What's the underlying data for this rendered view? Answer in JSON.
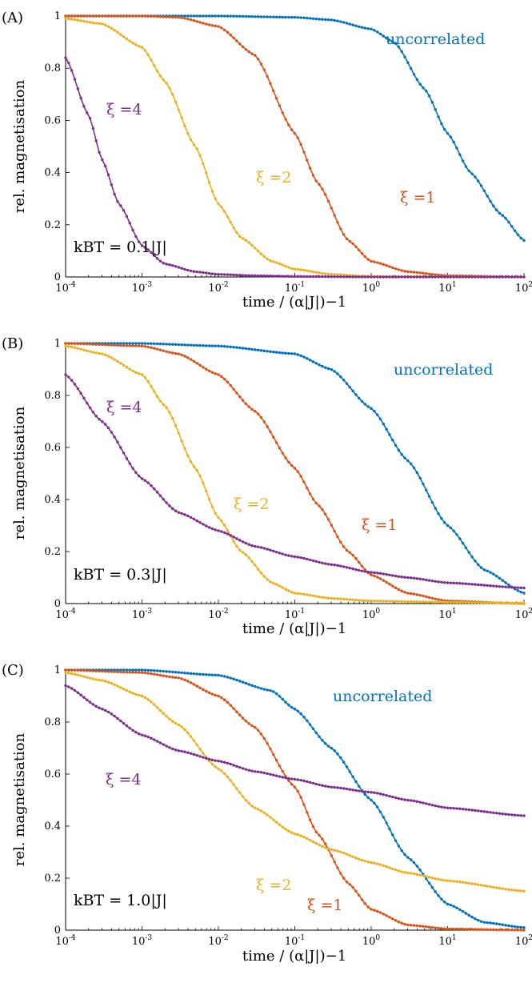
{
  "chart_data": [
    {
      "type": "line",
      "panel": "(A)",
      "xscale": "log",
      "xlim": [
        0.0001,
        100
      ],
      "ylim": [
        0,
        1
      ],
      "xticks": [
        "10-4",
        "10-3",
        "10-2",
        "10-1",
        "100",
        "101",
        "102"
      ],
      "yticks": [
        "0",
        "0.2",
        "0.4",
        "0.6",
        "0.8",
        "1"
      ],
      "xlabel": "time / (α|J|)−1",
      "ylabel": "rel. magnetisation",
      "temperature_label": "kBT = 0.1|J|",
      "series": [
        {
          "name": "uncorrelated",
          "color": "#0072BD",
          "x": [
            0.0001,
            0.001,
            0.01,
            0.1,
            0.3,
            1,
            2,
            5,
            10,
            20,
            50,
            100
          ],
          "y": [
            1,
            1,
            1,
            0.995,
            0.985,
            0.95,
            0.9,
            0.72,
            0.55,
            0.4,
            0.24,
            0.14
          ]
        },
        {
          "name": "ξ =1",
          "color": "#D95319",
          "x": [
            0.0001,
            0.001,
            0.003,
            0.01,
            0.03,
            0.1,
            0.2,
            0.5,
            1,
            3,
            10,
            100
          ],
          "y": [
            1,
            1,
            0.995,
            0.96,
            0.85,
            0.55,
            0.36,
            0.14,
            0.06,
            0.02,
            0.005,
            0
          ]
        },
        {
          "name": "ξ =2",
          "color": "#EDB120",
          "x": [
            0.0001,
            0.0003,
            0.001,
            0.002,
            0.005,
            0.01,
            0.02,
            0.05,
            0.1,
            0.3,
            1,
            100
          ],
          "y": [
            0.99,
            0.97,
            0.88,
            0.75,
            0.5,
            0.28,
            0.15,
            0.06,
            0.03,
            0.01,
            0.002,
            0
          ]
        },
        {
          "name": "ξ =4",
          "color": "#7E2F8E",
          "x": [
            0.0001,
            0.0002,
            0.0003,
            0.0005,
            0.001,
            0.002,
            0.005,
            0.01,
            0.03,
            0.1,
            1,
            100
          ],
          "y": [
            0.84,
            0.62,
            0.45,
            0.28,
            0.12,
            0.05,
            0.02,
            0.01,
            0.005,
            0.002,
            0,
            0
          ]
        }
      ]
    },
    {
      "type": "line",
      "panel": "(B)",
      "xscale": "log",
      "xlim": [
        0.0001,
        100
      ],
      "ylim": [
        0,
        1
      ],
      "xticks": [
        "10-4",
        "10-3",
        "10-2",
        "10-1",
        "100",
        "101",
        "102"
      ],
      "yticks": [
        "0",
        "0.2",
        "0.4",
        "0.6",
        "0.8",
        "1"
      ],
      "xlabel": "time / (α|J|)−1",
      "ylabel": "rel. magnetisation",
      "temperature_label": "kBT = 0.3|J|",
      "series": [
        {
          "name": "uncorrelated",
          "color": "#0072BD",
          "x": [
            0.0001,
            0.001,
            0.01,
            0.1,
            0.3,
            1,
            3,
            10,
            30,
            100
          ],
          "y": [
            1,
            1,
            0.99,
            0.96,
            0.9,
            0.75,
            0.55,
            0.3,
            0.13,
            0.04
          ]
        },
        {
          "name": "ξ =1",
          "color": "#D95319",
          "x": [
            0.0001,
            0.001,
            0.003,
            0.01,
            0.03,
            0.1,
            0.2,
            0.5,
            1,
            3,
            10,
            100
          ],
          "y": [
            1,
            0.99,
            0.96,
            0.88,
            0.74,
            0.52,
            0.38,
            0.2,
            0.11,
            0.04,
            0.01,
            0
          ]
        },
        {
          "name": "ξ =2",
          "color": "#EDB120",
          "x": [
            0.0001,
            0.0003,
            0.001,
            0.002,
            0.005,
            0.01,
            0.02,
            0.05,
            0.1,
            0.3,
            1,
            10,
            100
          ],
          "y": [
            0.99,
            0.96,
            0.88,
            0.76,
            0.52,
            0.33,
            0.2,
            0.08,
            0.04,
            0.02,
            0.01,
            0.005,
            0.002
          ]
        },
        {
          "name": "ξ =4",
          "color": "#7E2F8E",
          "x": [
            0.0001,
            0.0003,
            0.001,
            0.003,
            0.01,
            0.03,
            0.1,
            0.3,
            1,
            3,
            10,
            100
          ],
          "y": [
            0.88,
            0.7,
            0.48,
            0.35,
            0.28,
            0.22,
            0.18,
            0.15,
            0.12,
            0.1,
            0.08,
            0.06
          ]
        }
      ]
    },
    {
      "type": "line",
      "panel": "(C)",
      "xscale": "log",
      "xlim": [
        0.0001,
        100
      ],
      "ylim": [
        0,
        1
      ],
      "xticks": [
        "10-4",
        "10-3",
        "10-2",
        "10-1",
        "100",
        "101",
        "102"
      ],
      "yticks": [
        "0",
        "0.2",
        "0.4",
        "0.6",
        "0.8",
        "1"
      ],
      "xlabel": "time / (α|J|)−1",
      "ylabel": "rel. magnetisation",
      "temperature_label": "kBT = 1.0|J|",
      "series": [
        {
          "name": "uncorrelated",
          "color": "#0072BD",
          "x": [
            0.0001,
            0.001,
            0.01,
            0.05,
            0.1,
            0.3,
            1,
            3,
            10,
            30,
            100
          ],
          "y": [
            1,
            1,
            0.98,
            0.92,
            0.85,
            0.7,
            0.5,
            0.28,
            0.1,
            0.03,
            0.01
          ]
        },
        {
          "name": "ξ =1",
          "color": "#D95319",
          "x": [
            0.0001,
            0.001,
            0.003,
            0.01,
            0.03,
            0.1,
            0.2,
            0.5,
            1,
            3,
            10,
            100
          ],
          "y": [
            1,
            0.99,
            0.97,
            0.9,
            0.78,
            0.55,
            0.37,
            0.18,
            0.08,
            0.02,
            0.005,
            0
          ]
        },
        {
          "name": "ξ =2",
          "color": "#EDB120",
          "x": [
            0.0001,
            0.0003,
            0.001,
            0.003,
            0.01,
            0.03,
            0.1,
            0.3,
            1,
            3,
            10,
            100
          ],
          "y": [
            0.99,
            0.96,
            0.9,
            0.79,
            0.62,
            0.47,
            0.37,
            0.31,
            0.26,
            0.22,
            0.19,
            0.15
          ]
        },
        {
          "name": "ξ =4",
          "color": "#7E2F8E",
          "x": [
            0.0001,
            0.0003,
            0.001,
            0.003,
            0.01,
            0.03,
            0.1,
            0.3,
            1,
            3,
            10,
            100
          ],
          "y": [
            0.94,
            0.85,
            0.75,
            0.69,
            0.65,
            0.61,
            0.58,
            0.55,
            0.53,
            0.5,
            0.47,
            0.44
          ]
        }
      ]
    }
  ]
}
